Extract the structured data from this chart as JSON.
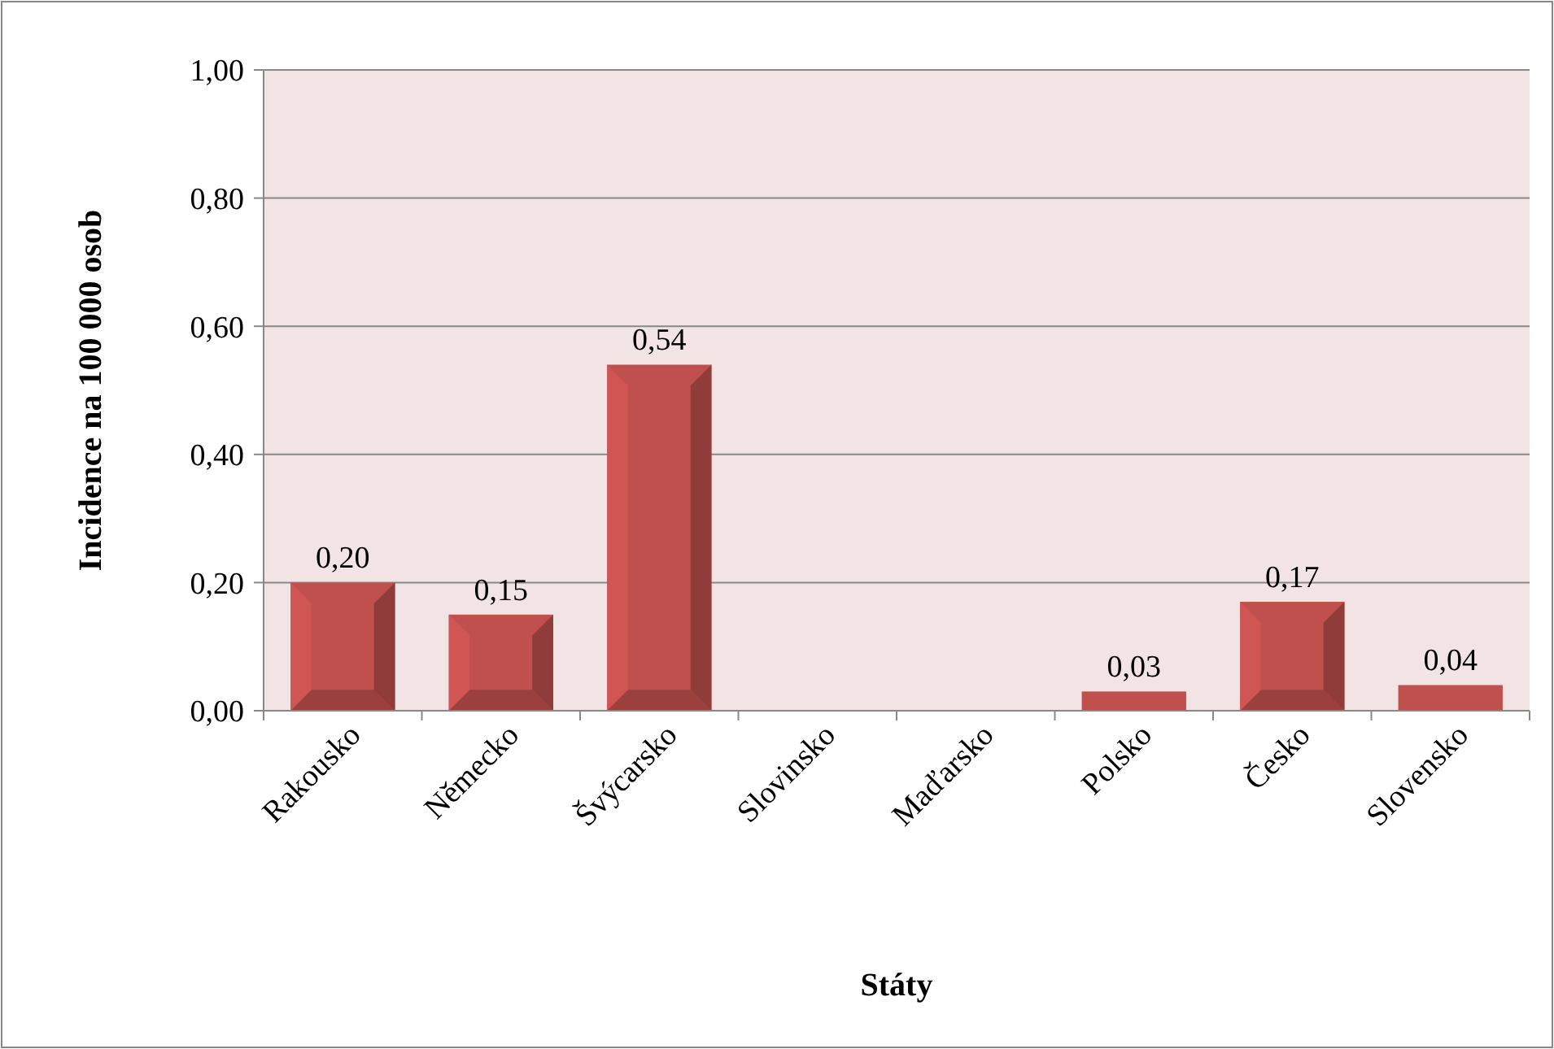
{
  "chart_data": {
    "type": "bar",
    "xlabel": "Státy",
    "ylabel": "Incidence na 100 000 osob",
    "categories": [
      "Rakousko",
      "Německo",
      "Švýcarsko",
      "Slovinsko",
      "Maďarsko",
      "Polsko",
      "Česko",
      "Slovensko"
    ],
    "values": [
      0.2,
      0.15,
      0.54,
      0,
      0,
      0.03,
      0.17,
      0.04
    ],
    "value_labels": [
      "0,20",
      "0,15",
      "0,54",
      null,
      null,
      "0,03",
      "0,17",
      "0,04"
    ],
    "color": "#c0504d",
    "ylim": [
      0,
      1
    ],
    "yticks": [
      {
        "value": 0,
        "label": "0,00"
      },
      {
        "value": 0.2,
        "label": "0,20"
      },
      {
        "value": 0.4,
        "label": "0,40"
      },
      {
        "value": 0.6,
        "label": "0,60"
      },
      {
        "value": 0.8,
        "label": "0,80"
      },
      {
        "value": 1,
        "label": "1,00"
      }
    ],
    "grid": "y"
  }
}
